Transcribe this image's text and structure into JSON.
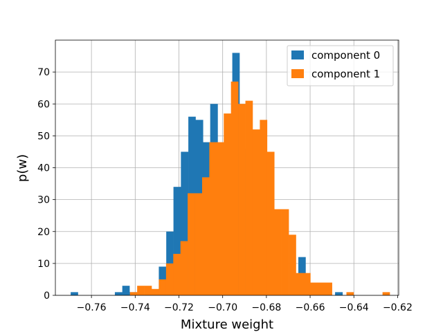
{
  "chart_data": {
    "type": "bar",
    "histogram": true,
    "title": "",
    "xlabel": "Mixture weight",
    "ylabel": "p(w)",
    "xlim": [
      -0.7765,
      -0.6195
    ],
    "ylim": [
      0,
      80
    ],
    "xticks": [
      -0.76,
      -0.74,
      -0.72,
      -0.7,
      -0.68,
      -0.66,
      -0.64,
      -0.62
    ],
    "xtick_labels": [
      "−0.76",
      "−0.74",
      "−0.72",
      "−0.70",
      "−0.68",
      "−0.66",
      "−0.64",
      "−0.62"
    ],
    "yticks": [
      0,
      10,
      20,
      30,
      40,
      50,
      60,
      70
    ],
    "ytick_labels": [
      "0",
      "10",
      "20",
      "30",
      "40",
      "50",
      "60",
      "70"
    ],
    "grid": true,
    "legend_position": "top-right",
    "series": [
      {
        "name": "component 0",
        "color": "#1f77b4",
        "bins": [
          {
            "x0": -0.7695,
            "x1": -0.7662,
            "value": 1
          },
          {
            "x0": -0.7526,
            "x1": -0.7493,
            "value": 0
          },
          {
            "x0": -0.7493,
            "x1": -0.7459,
            "value": 1
          },
          {
            "x0": -0.7459,
            "x1": -0.7426,
            "value": 3
          },
          {
            "x0": -0.7426,
            "x1": -0.7392,
            "value": 1
          },
          {
            "x0": -0.7292,
            "x1": -0.7258,
            "value": 9
          },
          {
            "x0": -0.7258,
            "x1": -0.7225,
            "value": 20
          },
          {
            "x0": -0.7225,
            "x1": -0.7191,
            "value": 34
          },
          {
            "x0": -0.7191,
            "x1": -0.7157,
            "value": 45
          },
          {
            "x0": -0.7157,
            "x1": -0.7124,
            "value": 56
          },
          {
            "x0": -0.7124,
            "x1": -0.709,
            "value": 55
          },
          {
            "x0": -0.709,
            "x1": -0.7057,
            "value": 48
          },
          {
            "x0": -0.7057,
            "x1": -0.7023,
            "value": 60
          },
          {
            "x0": -0.6956,
            "x1": -0.6923,
            "value": 76
          },
          {
            "x0": -0.6923,
            "x1": -0.6889,
            "value": 46
          },
          {
            "x0": -0.6654,
            "x1": -0.6621,
            "value": 12
          },
          {
            "x0": -0.6486,
            "x1": -0.6452,
            "value": 1
          }
        ]
      },
      {
        "name": "component 1",
        "color": "#ff7f0e",
        "bins": [
          {
            "x0": -0.7424,
            "x1": -0.7391,
            "value": 1
          },
          {
            "x0": -0.7391,
            "x1": -0.7358,
            "value": 3
          },
          {
            "x0": -0.7358,
            "x1": -0.7325,
            "value": 3
          },
          {
            "x0": -0.7325,
            "x1": -0.7292,
            "value": 2
          },
          {
            "x0": -0.7292,
            "x1": -0.7259,
            "value": 5
          },
          {
            "x0": -0.7259,
            "x1": -0.7226,
            "value": 10
          },
          {
            "x0": -0.7226,
            "x1": -0.7193,
            "value": 13
          },
          {
            "x0": -0.7193,
            "x1": -0.716,
            "value": 17
          },
          {
            "x0": -0.716,
            "x1": -0.7127,
            "value": 32
          },
          {
            "x0": -0.7127,
            "x1": -0.7094,
            "value": 32
          },
          {
            "x0": -0.7094,
            "x1": -0.7061,
            "value": 37
          },
          {
            "x0": -0.7061,
            "x1": -0.7028,
            "value": 48
          },
          {
            "x0": -0.7028,
            "x1": -0.6995,
            "value": 48
          },
          {
            "x0": -0.6995,
            "x1": -0.6962,
            "value": 57
          },
          {
            "x0": -0.6962,
            "x1": -0.6929,
            "value": 67
          },
          {
            "x0": -0.6929,
            "x1": -0.6896,
            "value": 60
          },
          {
            "x0": -0.6896,
            "x1": -0.6863,
            "value": 61
          },
          {
            "x0": -0.6863,
            "x1": -0.683,
            "value": 52
          },
          {
            "x0": -0.683,
            "x1": -0.6797,
            "value": 55
          },
          {
            "x0": -0.6797,
            "x1": -0.6764,
            "value": 45
          },
          {
            "x0": -0.6764,
            "x1": -0.6731,
            "value": 27
          },
          {
            "x0": -0.6731,
            "x1": -0.6698,
            "value": 27
          },
          {
            "x0": -0.6698,
            "x1": -0.6665,
            "value": 19
          },
          {
            "x0": -0.6665,
            "x1": -0.6632,
            "value": 7
          },
          {
            "x0": -0.6632,
            "x1": -0.6599,
            "value": 7
          },
          {
            "x0": -0.6599,
            "x1": -0.6566,
            "value": 4
          },
          {
            "x0": -0.6566,
            "x1": -0.6533,
            "value": 4
          },
          {
            "x0": -0.6533,
            "x1": -0.65,
            "value": 4
          },
          {
            "x0": -0.6434,
            "x1": -0.6401,
            "value": 1
          },
          {
            "x0": -0.6269,
            "x1": -0.6236,
            "value": 1
          }
        ]
      }
    ]
  }
}
